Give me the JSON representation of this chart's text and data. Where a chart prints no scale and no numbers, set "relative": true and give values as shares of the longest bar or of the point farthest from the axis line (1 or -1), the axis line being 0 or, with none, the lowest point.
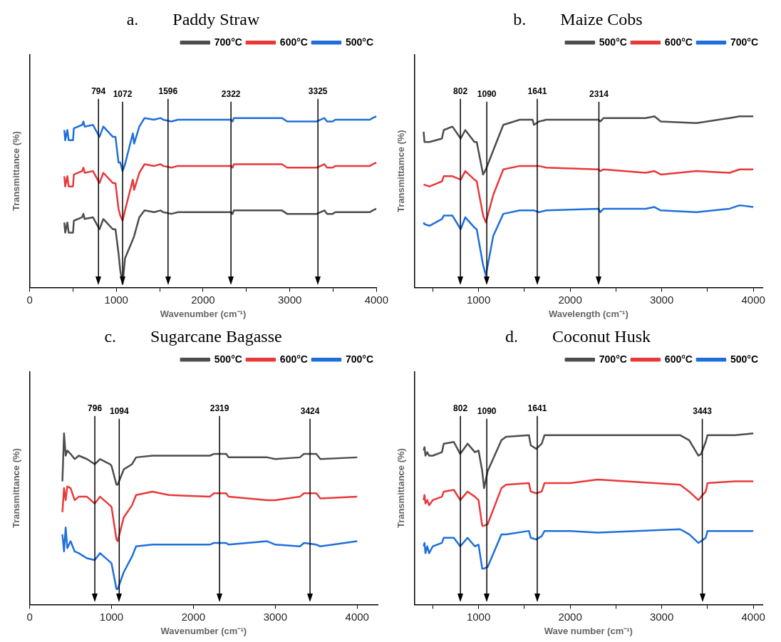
{
  "chart_data": [
    {
      "type": "line",
      "title": "a.        Paddy Straw",
      "xlabel": "Wavenumber (cm⁻¹)",
      "ylabel": "Transmittance (%)",
      "relative": true,
      "legend": "top right",
      "grid": false,
      "marker": "none",
      "xlim": [
        0,
        4000
      ],
      "xticks": [
        0,
        {
          "value": 500,
          "label": null
        },
        1000,
        {
          "value": 1500,
          "label": null
        },
        2000,
        {
          "value": 2500,
          "label": null
        },
        3000,
        {
          "value": 3500,
          "label": null
        },
        4000
      ],
      "x": [
        400,
        410,
        435,
        450,
        500,
        510,
        605,
        620,
        635,
        730,
        805,
        850,
        960,
        990,
        1025,
        1045,
        1072,
        1100,
        1190,
        1205,
        1265,
        1325,
        1435,
        1510,
        1540,
        1635,
        1710,
        2325,
        2340,
        2355,
        2910,
        2970,
        3185,
        3310,
        3400,
        3430,
        3495,
        3525,
        3925,
        3955,
        4000
      ],
      "series": [
        {
          "name": "700°C",
          "color": "#4d4d4d",
          "values": [
            0.38,
            0.32,
            0.38,
            0.32,
            0.32,
            0.39,
            0.41,
            0.43,
            0.4,
            0.41,
            0.34,
            0.4,
            0.34,
            0.34,
            0.2,
            0.1,
            0.02,
            0.17,
            0.28,
            0.3,
            0.41,
            0.45,
            0.44,
            0.45,
            0.44,
            0.43,
            0.44,
            0.44,
            0.43,
            0.45,
            0.45,
            0.43,
            0.43,
            0.43,
            0.45,
            0.43,
            0.43,
            0.44,
            0.44,
            0.45,
            0.46
          ]
        },
        {
          "name": "600°C",
          "color": "#e8393b",
          "values": [
            0.65,
            0.59,
            0.65,
            0.59,
            0.59,
            0.66,
            0.68,
            0.7,
            0.67,
            0.68,
            0.61,
            0.67,
            0.61,
            0.61,
            0.46,
            0.42,
            0.39,
            0.45,
            0.63,
            0.57,
            0.67,
            0.72,
            0.71,
            0.72,
            0.71,
            0.7,
            0.71,
            0.71,
            0.7,
            0.72,
            0.72,
            0.7,
            0.7,
            0.7,
            0.72,
            0.7,
            0.7,
            0.71,
            0.71,
            0.72,
            0.73
          ]
        },
        {
          "name": "500°C",
          "color": "#1f6fdb",
          "values": [
            0.92,
            0.86,
            0.92,
            0.86,
            0.86,
            0.93,
            0.95,
            0.97,
            0.94,
            0.95,
            0.88,
            0.94,
            0.88,
            0.88,
            0.73,
            0.73,
            0.68,
            0.72,
            0.9,
            0.84,
            0.94,
            0.99,
            0.98,
            0.99,
            0.98,
            0.97,
            0.98,
            0.98,
            0.97,
            0.99,
            0.99,
            0.97,
            0.97,
            0.97,
            0.99,
            0.97,
            0.97,
            0.98,
            0.98,
            0.99,
            1
          ]
        }
      ],
      "ref_lines": [
        {
          "axis": "x",
          "value": 794,
          "label": "794"
        },
        {
          "axis": "x",
          "value": 1072,
          "label": "1072"
        },
        {
          "axis": "x",
          "value": 1596,
          "label": "1596"
        },
        {
          "axis": "x",
          "value": 2322,
          "label": "2322"
        },
        {
          "axis": "x",
          "value": 3325,
          "label": "3325"
        }
      ]
    },
    {
      "type": "line",
      "title": "b.        Maize Cobs",
      "xlabel": "Wavelength (cm⁻¹)",
      "ylabel": "Transmittamce (%)",
      "relative": true,
      "legend": "top right",
      "grid": false,
      "marker": "none",
      "xlim": [
        300,
        4100
      ],
      "xticks": [
        {
          "value": 500,
          "label": null
        },
        1000,
        {
          "value": 1500,
          "label": null
        },
        2000,
        {
          "value": 2500,
          "label": null
        },
        3000,
        {
          "value": 3500,
          "label": null
        },
        4000
      ],
      "x": [
        400,
        410,
        465,
        600,
        620,
        715,
        805,
        855,
        955,
        980,
        1050,
        1080,
        1160,
        1270,
        1450,
        1590,
        1605,
        1660,
        1740,
        2310,
        2330,
        2365,
        2825,
        2920,
        2990,
        3380,
        3740,
        3850,
        4000
      ],
      "series": [
        {
          "name": "500°C",
          "color": "#4d4d4d",
          "values": [
            0.91,
            0.85,
            0.85,
            0.87,
            0.92,
            0.94,
            0.87,
            0.92,
            0.85,
            0.85,
            0.66,
            0.69,
            0.8,
            0.95,
            0.98,
            0.98,
            0.95,
            0.97,
            0.98,
            0.98,
            0.97,
            0.99,
            0.99,
            1,
            0.97,
            0.96,
            0.99,
            1,
            1
          ]
        },
        {
          "name": "600°C",
          "color": "#e8393b",
          "values": [
            0.6,
            0.6,
            0.59,
            0.62,
            0.65,
            0.65,
            0.63,
            0.68,
            0.63,
            0.62,
            0.42,
            0.38,
            0.54,
            0.69,
            0.71,
            0.71,
            0.71,
            0.71,
            0.7,
            0.69,
            0.68,
            0.69,
            0.67,
            0.68,
            0.66,
            0.68,
            0.67,
            0.69,
            0.69
          ]
        },
        {
          "name": "700°C",
          "color": "#1f6fdb",
          "values": [
            0.38,
            0.37,
            0.36,
            0.4,
            0.42,
            0.42,
            0.34,
            0.41,
            0.35,
            0.34,
            0.13,
            0.07,
            0.3,
            0.43,
            0.45,
            0.45,
            0.45,
            0.44,
            0.45,
            0.46,
            0.44,
            0.46,
            0.46,
            0.47,
            0.45,
            0.44,
            0.46,
            0.48,
            0.47
          ]
        }
      ],
      "ref_lines": [
        {
          "axis": "x",
          "value": 802,
          "label": "802"
        },
        {
          "axis": "x",
          "value": 1090,
          "label": "1090"
        },
        {
          "axis": "x",
          "value": 1641,
          "label": "1641"
        },
        {
          "axis": "x",
          "value": 2314,
          "label": "2314"
        }
      ]
    },
    {
      "type": "line",
      "title": "c.        Sugarcane Bagasse",
      "xlabel": "Wavenumber (cm⁻¹)",
      "ylabel": "Transmittance (%)",
      "relative": true,
      "legend": "top right",
      "grid": false,
      "marker": "none",
      "xlim": [
        0,
        4250
      ],
      "xticks": [
        0,
        1000,
        2000,
        3000,
        4000
      ],
      "x": [
        400,
        420,
        440,
        460,
        500,
        550,
        600,
        700,
        795,
        860,
        980,
        1000,
        1060,
        1075,
        1150,
        1250,
        1300,
        1500,
        1700,
        2200,
        2250,
        2400,
        2430,
        2900,
        3000,
        3300,
        3350,
        3500,
        3550,
        4000
      ],
      "series": [
        {
          "name": "500°C",
          "color": "#4d4d4d",
          "values": [
            0.72,
            1,
            0.87,
            0.9,
            0.88,
            0.85,
            0.87,
            0.85,
            0.82,
            0.85,
            0.82,
            0.81,
            0.7,
            0.7,
            0.79,
            0.82,
            0.86,
            0.87,
            0.87,
            0.87,
            0.88,
            0.88,
            0.86,
            0.86,
            0.85,
            0.86,
            0.88,
            0.88,
            0.85,
            0.86
          ]
        },
        {
          "name": "600°C",
          "color": "#e8393b",
          "values": [
            0.54,
            0.68,
            0.61,
            0.69,
            0.68,
            0.61,
            0.63,
            0.63,
            0.59,
            0.63,
            0.58,
            0.57,
            0.38,
            0.37,
            0.51,
            0.58,
            0.64,
            0.66,
            0.64,
            0.63,
            0.65,
            0.65,
            0.63,
            0.61,
            0.61,
            0.63,
            0.65,
            0.65,
            0.62,
            0.63
          ]
        },
        {
          "name": "700°C",
          "color": "#1f6fdb",
          "values": [
            0.41,
            0.31,
            0.45,
            0.33,
            0.37,
            0.31,
            0.3,
            0.27,
            0.26,
            0.3,
            0.25,
            0.24,
            0.09,
            0.09,
            0.19,
            0.28,
            0.34,
            0.35,
            0.35,
            0.35,
            0.36,
            0.36,
            0.35,
            0.37,
            0.35,
            0.34,
            0.36,
            0.35,
            0.34,
            0.37
          ]
        }
      ],
      "ref_lines": [
        {
          "axis": "x",
          "value": 796,
          "label": "796"
        },
        {
          "axis": "x",
          "value": 1094,
          "label": "1094"
        },
        {
          "axis": "x",
          "value": 2319,
          "label": "2319"
        },
        {
          "axis": "x",
          "value": 3424,
          "label": "3424"
        }
      ]
    },
    {
      "type": "line",
      "title": "d.        Coconut Husk",
      "xlabel": "Wave number (cm⁻¹)",
      "ylabel": "Transmittance (%)",
      "relative": true,
      "legend": "top right",
      "grid": false,
      "marker": "none",
      "xlim": [
        300,
        4100
      ],
      "xticks": [
        {
          "value": 500,
          "label": null
        },
        1000,
        {
          "value": 1500,
          "label": null
        },
        2000,
        {
          "value": 2500,
          "label": null
        },
        3000,
        {
          "value": 3500,
          "label": null
        },
        4000
      ],
      "x": [
        400,
        410,
        420,
        440,
        460,
        500,
        600,
        620,
        730,
        800,
        880,
        960,
        1000,
        1040,
        1060,
        1100,
        1250,
        1300,
        1550,
        1570,
        1630,
        1690,
        1720,
        2000,
        2300,
        3200,
        3300,
        3400,
        3430,
        3480,
        3500,
        3800,
        4000
      ],
      "series": [
        {
          "name": "700°C",
          "color": "#4d4d4d",
          "values": [
            0.9,
            0.92,
            0.87,
            0.89,
            0.87,
            0.87,
            0.89,
            0.94,
            0.95,
            0.88,
            0.94,
            0.89,
            0.9,
            0.78,
            0.68,
            0.78,
            0.96,
            0.98,
            0.99,
            0.93,
            0.91,
            0.94,
            0.99,
            0.99,
            0.99,
            0.99,
            0.96,
            0.87,
            0.88,
            0.95,
            0.99,
            0.99,
            1
          ]
        },
        {
          "name": "600°C",
          "color": "#e8393b",
          "values": [
            0.61,
            0.64,
            0.59,
            0.61,
            0.58,
            0.61,
            0.63,
            0.66,
            0.67,
            0.61,
            0.66,
            0.63,
            0.61,
            0.46,
            0.46,
            0.47,
            0.68,
            0.7,
            0.71,
            0.66,
            0.65,
            0.66,
            0.71,
            0.71,
            0.73,
            0.7,
            0.66,
            0.61,
            0.63,
            0.66,
            0.71,
            0.72,
            0.72
          ]
        },
        {
          "name": "500°C",
          "color": "#1f6fdb",
          "values": [
            0.34,
            0.36,
            0.3,
            0.34,
            0.3,
            0.34,
            0.36,
            0.39,
            0.39,
            0.34,
            0.39,
            0.34,
            0.35,
            0.21,
            0.21,
            0.22,
            0.41,
            0.41,
            0.43,
            0.39,
            0.38,
            0.4,
            0.43,
            0.43,
            0.42,
            0.44,
            0.41,
            0.36,
            0.37,
            0.39,
            0.43,
            0.43,
            0.43
          ]
        }
      ],
      "ref_lines": [
        {
          "axis": "x",
          "value": 802,
          "label": "802"
        },
        {
          "axis": "x",
          "value": 1090,
          "label": "1090"
        },
        {
          "axis": "x",
          "value": 1641,
          "label": "1641"
        },
        {
          "axis": "x",
          "value": 3443,
          "label": "3443"
        }
      ]
    }
  ]
}
